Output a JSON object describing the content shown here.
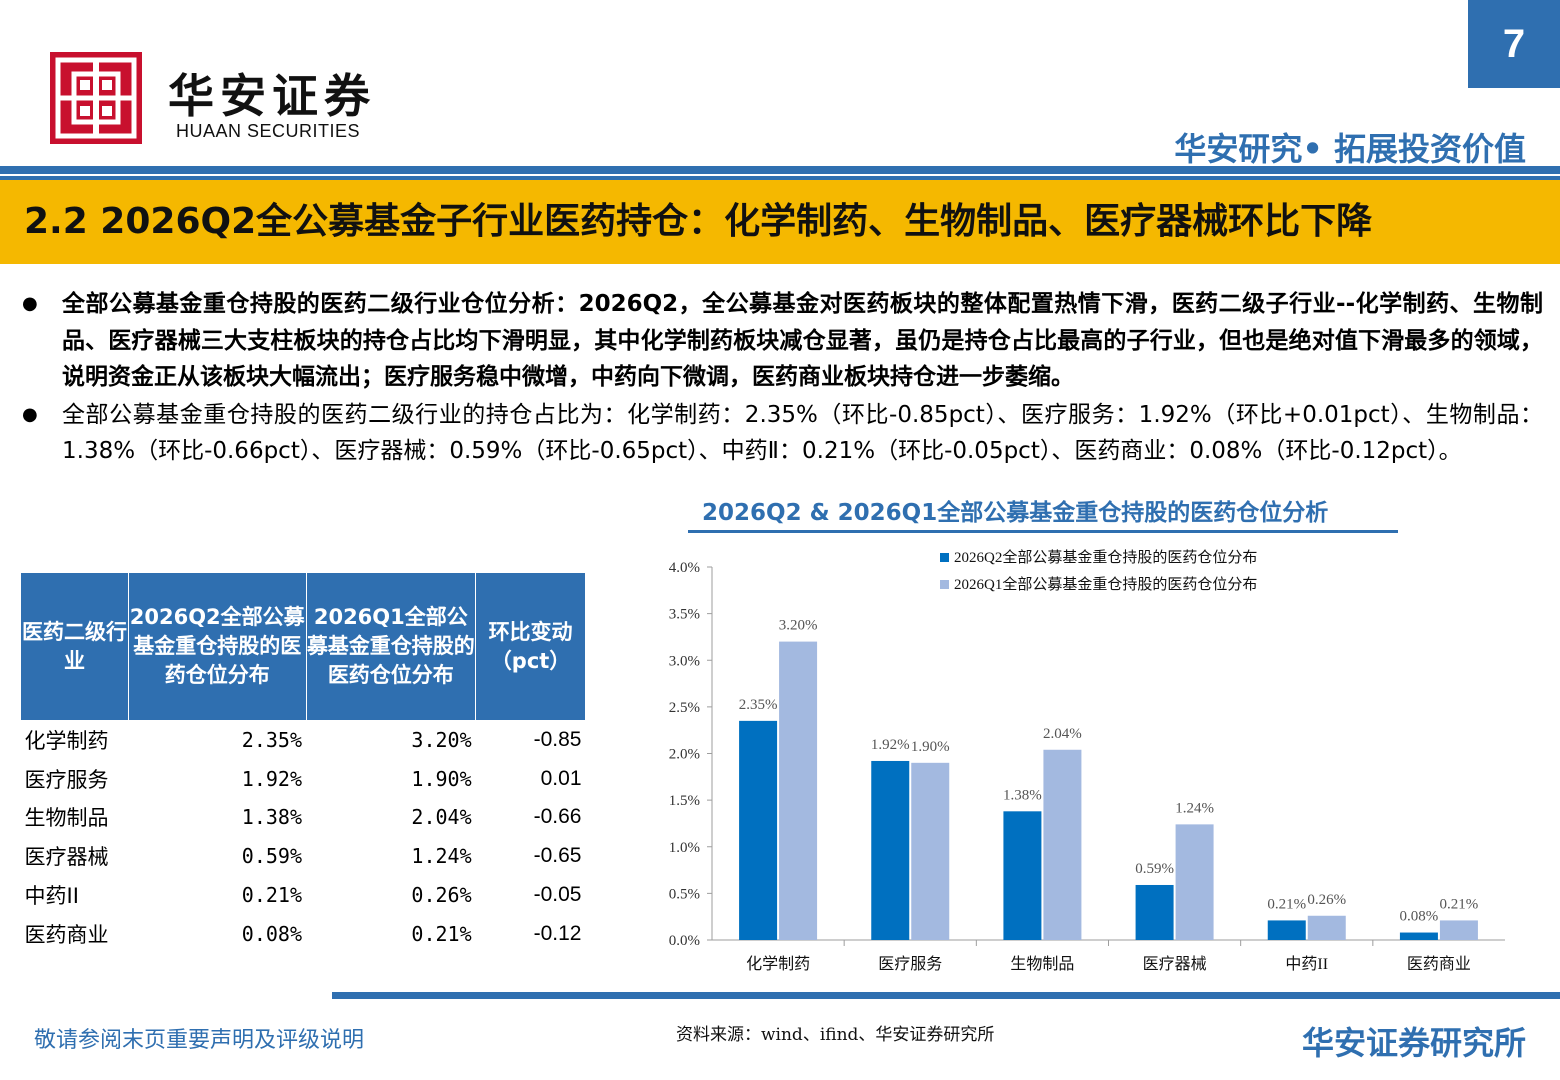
{
  "header": {
    "page_number": "7",
    "brand_cn": "华安证券",
    "brand_en": "HUAAN SECURITIES",
    "slogan": "华安研究• 拓展投资价值",
    "colors": {
      "brand_blue": "#2f6fb0",
      "title_bar": "#f5b800",
      "logo_red": "#c8102e"
    },
    "logo_icon": "huaan-logo-icon"
  },
  "title": "2.2 2026Q2全公募基金子行业医药持仓：化学制药、生物制品、医疗器械环比下降",
  "bullets": [
    "全部公募基金重仓持股的医药二级行业仓位分析：2026Q2，全公募基金对医药板块的整体配置热情下滑，医药二级子行业--化学制药、生物制品、医疗器械三大支柱板块的持仓占比均下滑明显，其中化学制药板块减仓显著，虽仍是持仓占比最高的子行业，但也是绝对值下滑最多的领域，说明资金正从该板块大幅流出；医疗服务稳中微增，中药向下微调，医药商业板块持仓进一步萎缩。",
    "全部公募基金重仓持股的医药二级行业的持仓占比为：化学制药：2.35%（环比-0.85pct）、医疗服务：1.92%（环比+0.01pct）、生物制品：1.38%（环比-0.66pct）、医疗器械：0.59%（环比-0.65pct）、中药Ⅱ：0.21%（环比-0.05pct）、医药商业：0.08%（环比-0.12pct）。"
  ],
  "bullet_symbol": "●",
  "table": {
    "headers": [
      "医药二级行业",
      "2026Q2全部公募基金重仓持股的医药仓位分布",
      "2026Q1全部公募基金重仓持股的医药仓位分布",
      "环比变动（pct）"
    ],
    "rows": [
      [
        "化学制药",
        "2.35%",
        "3.20%",
        "-0.85"
      ],
      [
        "医疗服务",
        "1.92%",
        "1.90%",
        "0.01"
      ],
      [
        "生物制品",
        "1.38%",
        "2.04%",
        "-0.66"
      ],
      [
        "医疗器械",
        "0.59%",
        "1.24%",
        "-0.65"
      ],
      [
        "中药II",
        "0.21%",
        "0.26%",
        "-0.05"
      ],
      [
        "医药商业",
        "0.08%",
        "0.21%",
        "-0.12"
      ]
    ]
  },
  "chart_title": "2026Q2 & 2026Q1全部公募基金重仓持股的医药仓位分析",
  "chart_data": {
    "type": "bar",
    "title": "2026Q2 & 2026Q1全部公募基金重仓持股的医药仓位分析",
    "categories": [
      "化学制药",
      "医疗服务",
      "生物制品",
      "医疗器械",
      "中药II",
      "医药商业"
    ],
    "series": [
      {
        "name": "2026Q2全部公募基金重仓持股的医药仓位分布",
        "values": [
          2.35,
          1.92,
          1.38,
          0.59,
          0.21,
          0.08
        ],
        "labels": [
          "2.35%",
          "1.92%",
          "1.38%",
          "0.59%",
          "0.21%",
          "0.08%"
        ],
        "color": "#0070c0"
      },
      {
        "name": "2026Q1全部公募基金重仓持股的医药仓位分布",
        "values": [
          3.2,
          1.9,
          2.04,
          1.24,
          0.26,
          0.21
        ],
        "labels": [
          "3.20%",
          "1.90%",
          "2.04%",
          "1.24%",
          "0.26%",
          "0.21%"
        ],
        "color": "#a3b9e0"
      }
    ],
    "yticks": [
      "0.0%",
      "0.5%",
      "1.0%",
      "1.5%",
      "2.0%",
      "2.5%",
      "3.0%",
      "3.5%",
      "4.0%"
    ],
    "ylim": [
      0,
      4.0
    ],
    "grid": false,
    "legend_position": "top-right"
  },
  "footer": {
    "disclaimer": "敬请参阅末页重要声明及评级说明",
    "source": "资料来源：wind、ifind、华安证券研究所",
    "institute": "华安证券研究所"
  }
}
